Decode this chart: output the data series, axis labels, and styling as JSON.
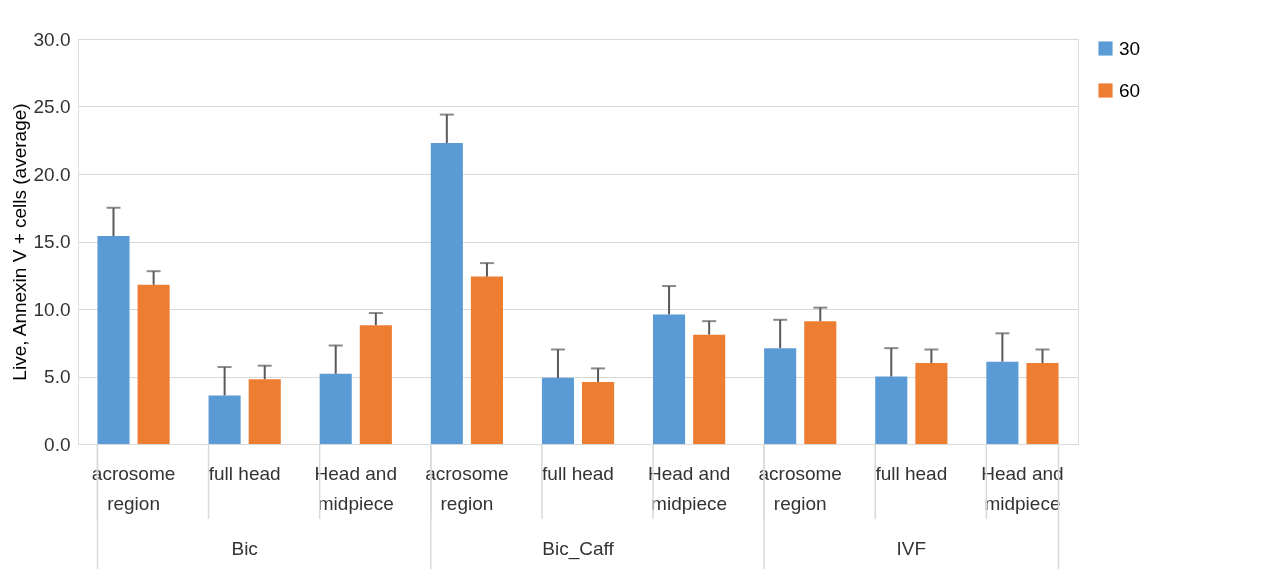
{
  "chart_data": {
    "type": "bar",
    "ylabel": "Live, Annexin V + cells (average)",
    "categories": [
      "acrosome region",
      "full head",
      "Head and midpiece",
      "acrosome region",
      "full head",
      "Head and midpiece",
      "acrosome region",
      "full head",
      "Head and midpiece"
    ],
    "annotations": [
      "Bic",
      "Bic_Caff",
      "IVF"
    ],
    "series": [
      {
        "name": "30",
        "color": "#5b9bd5",
        "values": [
          15.4,
          3.6,
          5.2,
          22.3,
          4.9,
          9.6,
          7.1,
          5.0,
          6.1
        ],
        "errors": [
          [
            15.4,
            17.5
          ],
          [
            3.6,
            5.7
          ],
          [
            5.2,
            7.3
          ],
          [
            22.3,
            24.4
          ],
          [
            4.9,
            7.0
          ],
          [
            9.6,
            11.7
          ],
          [
            7.1,
            9.2
          ],
          [
            5.0,
            7.1
          ],
          [
            6.1,
            8.2
          ]
        ]
      },
      {
        "name": "60",
        "color": "#ed7d31",
        "values": [
          11.8,
          4.8,
          8.8,
          12.4,
          4.6,
          8.1,
          9.1,
          6.0,
          6.0
        ],
        "errors": [
          [
            11.8,
            12.8
          ],
          [
            4.8,
            5.8
          ],
          [
            8.8,
            9.7
          ],
          [
            12.4,
            13.4
          ],
          [
            4.6,
            5.6
          ],
          [
            8.1,
            9.1
          ],
          [
            9.1,
            10.1
          ],
          [
            6.0,
            7.0
          ],
          [
            6.0,
            7.0
          ]
        ]
      }
    ],
    "ylim": [
      0,
      30
    ],
    "yticks": [
      {
        "value": 0,
        "label": "0.0"
      },
      {
        "value": 5,
        "label": "5.0"
      },
      {
        "value": 10,
        "label": "10.0"
      },
      {
        "value": 15,
        "label": "15.0"
      },
      {
        "value": 20,
        "label": "20.0"
      },
      {
        "value": 25,
        "label": "25.0"
      },
      {
        "value": 30,
        "label": "30.0"
      }
    ],
    "grid": "y",
    "legend": "right"
  }
}
